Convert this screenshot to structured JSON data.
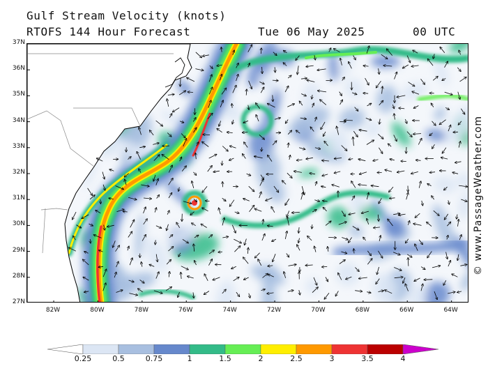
{
  "header": {
    "title": "Gulf Stream Velocity (knots)",
    "subtitle": "RTOFS 144 Hour Forecast",
    "forecast_date": "Tue 06 May 2025",
    "forecast_time": "00 UTC"
  },
  "credit": "© www.PassageWeather.com",
  "map": {
    "lon_range": [
      -83.2,
      -63.2
    ],
    "lat_range": [
      27,
      37
    ],
    "lat_labels": [
      "37N",
      "36N",
      "35N",
      "34N",
      "33N",
      "32N",
      "31N",
      "30N",
      "29N",
      "28N",
      "27N"
    ],
    "lon_labels": [
      "82W",
      "80W",
      "78W",
      "76W",
      "74W",
      "72W",
      "70W",
      "68W",
      "66W",
      "64W"
    ],
    "land_color": "#ffffff",
    "ocean_base_color": "#f4f7fb"
  },
  "legend": {
    "labels": [
      "0.25",
      "0.5",
      "0.75",
      "1",
      "1.5",
      "2",
      "2.5",
      "3",
      "3.5",
      "4"
    ],
    "colors": [
      "#ffffff",
      "#dce6f4",
      "#a8bfe0",
      "#6688cc",
      "#33bb88",
      "#66ee55",
      "#ffee00",
      "#ff9900",
      "#ee3333",
      "#bb0000",
      "#cc00cc"
    ]
  }
}
